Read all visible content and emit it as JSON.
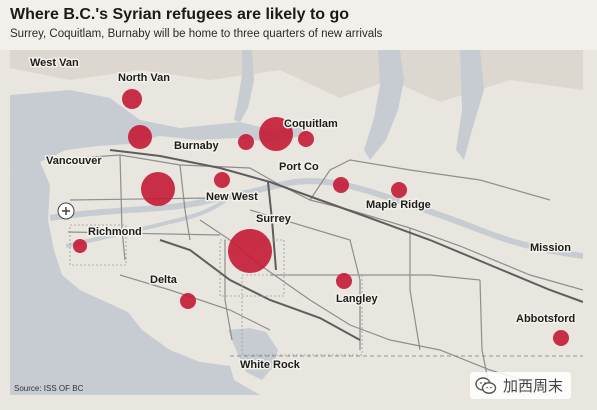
{
  "header": {
    "title": "Where B.C.'s Syrian refugees are likely to go",
    "subtitle": "Surrey, Coquitlam, Burnaby will be home to three quarters of new arrivals"
  },
  "source": "Source: ISS OF BC",
  "watermark": {
    "text": "加西周末",
    "icon": "wechat-icon"
  },
  "colors": {
    "water": "#c6ccd1",
    "land": "#e9e6df",
    "road": "#8e8e8e",
    "circle": "#c41a35",
    "highway": "#5e5e5e"
  },
  "places": [
    {
      "id": "west-van",
      "name": "West Van"
    },
    {
      "id": "north-van",
      "name": "North Van"
    },
    {
      "id": "vancouver",
      "name": "Vancouver"
    },
    {
      "id": "burnaby",
      "name": "Burnaby"
    },
    {
      "id": "coquitlam",
      "name": "Coquitlam"
    },
    {
      "id": "port-co",
      "name": "Port Co"
    },
    {
      "id": "new-west",
      "name": "New West"
    },
    {
      "id": "surrey",
      "name": "Surrey"
    },
    {
      "id": "maple-ridge",
      "name": "Maple Ridge"
    },
    {
      "id": "richmond",
      "name": "Richmond"
    },
    {
      "id": "delta",
      "name": "Delta"
    },
    {
      "id": "langley",
      "name": "Langley"
    },
    {
      "id": "mission",
      "name": "Mission"
    },
    {
      "id": "abbotsford",
      "name": "Abbotsford"
    },
    {
      "id": "white-rock",
      "name": "White Rock"
    }
  ],
  "circles": [
    {
      "id": "north-van",
      "size": "medium"
    },
    {
      "id": "vancouver-north",
      "size": "medium"
    },
    {
      "id": "vancouver-south",
      "size": "large"
    },
    {
      "id": "burnaby",
      "size": "small"
    },
    {
      "id": "coquitlam",
      "size": "large"
    },
    {
      "id": "port-moody",
      "size": "small"
    },
    {
      "id": "new-west",
      "size": "small"
    },
    {
      "id": "port-coquitlam",
      "size": "small"
    },
    {
      "id": "maple-ridge",
      "size": "small"
    },
    {
      "id": "richmond",
      "size": "small"
    },
    {
      "id": "surrey",
      "size": "xlarge"
    },
    {
      "id": "langley",
      "size": "small"
    },
    {
      "id": "delta",
      "size": "small"
    },
    {
      "id": "abbotsford",
      "size": "small"
    }
  ]
}
